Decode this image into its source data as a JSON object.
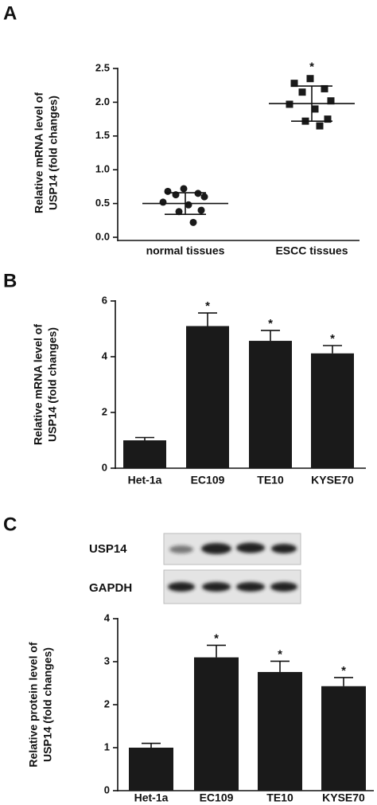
{
  "chart_data": [
    {
      "type": "strip",
      "panel": "A",
      "ylabel": [
        "Relative mRNA level of",
        "USP14 (fold changes)"
      ],
      "categories": [
        "normal tissues",
        "ESCC tissues"
      ],
      "values": [
        [
          0.72,
          0.68,
          0.65,
          0.63,
          0.6,
          0.52,
          0.48,
          0.4,
          0.38,
          0.22
        ],
        [
          2.35,
          2.28,
          2.2,
          2.15,
          2.02,
          1.97,
          1.9,
          1.75,
          1.72,
          1.65
        ]
      ],
      "means": [
        0.5,
        1.98
      ],
      "sd": [
        0.16,
        0.26
      ],
      "significance": [
        null,
        "*"
      ],
      "ylim": [
        0,
        2.5
      ],
      "yticks": [
        {
          "value": 0,
          "label": "0.0"
        },
        {
          "value": 0.5,
          "label": "0.5"
        },
        {
          "value": 1,
          "label": "1.0"
        },
        {
          "value": 1.5,
          "label": "1.5"
        },
        {
          "value": 2,
          "label": "2.0"
        },
        {
          "value": 2.5,
          "label": "2.5"
        }
      ],
      "color": "#1a1a1a"
    },
    {
      "type": "bar",
      "panel": "B",
      "ylabel": [
        "Relative mRNA level of",
        "USP14 (fold changes)"
      ],
      "categories": [
        "Het-1a",
        "EC109",
        "TE10",
        "KYSE70"
      ],
      "values": [
        1.0,
        5.1,
        4.57,
        4.12
      ],
      "errors": [
        0.1,
        0.47,
        0.37,
        0.28
      ],
      "significance": [
        null,
        "*",
        "*",
        "*"
      ],
      "ylim": [
        0,
        6
      ],
      "yticks": [
        0,
        2,
        4,
        6
      ],
      "color": "#1a1a1a"
    },
    {
      "type": "bar",
      "panel": "C",
      "blot_labels": [
        "USP14",
        "GAPDH"
      ],
      "ylabel": [
        "Relative protein level of",
        "USP14 (fold changes)"
      ],
      "categories": [
        "Het-1a",
        "EC109",
        "TE10",
        "KYSE70"
      ],
      "values": [
        1.0,
        3.1,
        2.76,
        2.43
      ],
      "errors": [
        0.1,
        0.28,
        0.25,
        0.2
      ],
      "significance": [
        null,
        "*",
        "*",
        "*"
      ],
      "ylim": [
        0,
        4
      ],
      "yticks": [
        0,
        1,
        2,
        3,
        4
      ],
      "color": "#1a1a1a"
    }
  ]
}
